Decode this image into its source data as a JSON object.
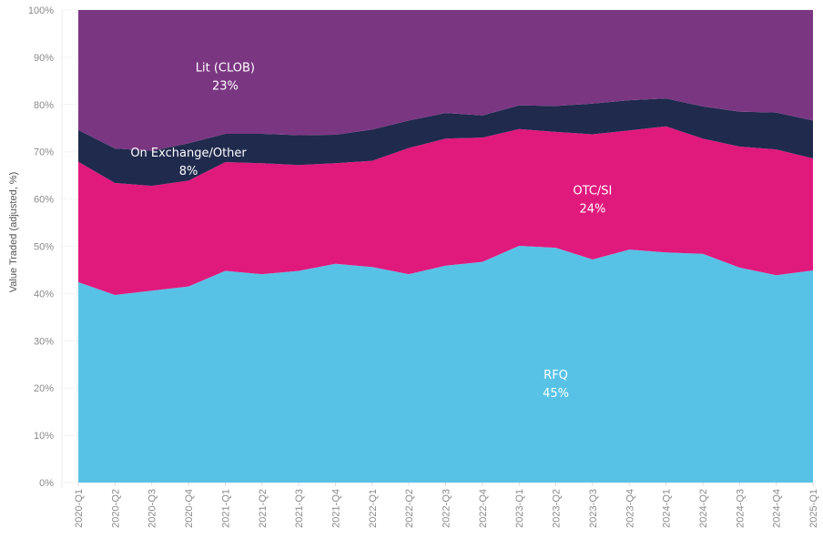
{
  "chart_data": {
    "type": "area",
    "stacked": true,
    "normalized": true,
    "title": "",
    "xlabel": "",
    "ylabel": "Value Traded (adjusted, %)",
    "ylim": [
      0,
      100
    ],
    "grid": true,
    "legend": "none (inline labels)",
    "y_ticks": [
      "0%",
      "10%",
      "20%",
      "30%",
      "40%",
      "50%",
      "60%",
      "70%",
      "80%",
      "90%",
      "100%"
    ],
    "y_tick_values": [
      0,
      10,
      20,
      30,
      40,
      50,
      60,
      70,
      80,
      90,
      100
    ],
    "categories": [
      "2020-Q1",
      "2020-Q2",
      "2020-Q3",
      "2020-Q4",
      "2021-Q1",
      "2021-Q2",
      "2021-Q3",
      "2021-Q4",
      "2022-Q1",
      "2022-Q2",
      "2022-Q3",
      "2022-Q4",
      "2023-Q1",
      "2023-Q2",
      "2023-Q3",
      "2023-Q4",
      "2024-Q1",
      "2024-Q2",
      "2024-Q3",
      "2024-Q4",
      "2025-Q1"
    ],
    "series": [
      {
        "name": "RFQ",
        "color": "#58c2e6",
        "values": [
          42.4,
          39.7,
          40.6,
          41.5,
          44.8,
          44.1,
          44.8,
          46.3,
          45.6,
          44.1,
          45.9,
          46.7,
          50.1,
          49.7,
          47.2,
          49.3,
          48.7,
          48.4,
          45.5,
          43.9,
          44.9
        ]
      },
      {
        "name": "OTC/SI",
        "color": "#e0197d",
        "values": [
          25.5,
          23.7,
          22.2,
          22.4,
          23.0,
          23.5,
          22.4,
          21.3,
          22.5,
          26.7,
          26.9,
          26.3,
          24.7,
          24.5,
          26.5,
          25.2,
          26.7,
          24.4,
          25.6,
          26.6,
          23.7
        ]
      },
      {
        "name": "On Exchange/Other",
        "color": "#1f2a4d",
        "values": [
          6.7,
          7.3,
          7.4,
          7.9,
          6.0,
          6.2,
          6.3,
          6.0,
          6.6,
          5.8,
          5.4,
          4.7,
          5.0,
          5.5,
          6.5,
          6.4,
          5.9,
          6.8,
          7.4,
          7.8,
          8.0
        ]
      },
      {
        "name": "Lit (CLOB)",
        "color": "#7b3682",
        "values": [
          25.4,
          29.3,
          29.8,
          28.2,
          26.2,
          26.2,
          26.5,
          26.4,
          25.3,
          23.4,
          21.8,
          22.3,
          20.2,
          20.3,
          19.8,
          19.1,
          18.7,
          20.4,
          21.5,
          21.7,
          23.4
        ]
      }
    ],
    "annotations": [
      {
        "series": "Lit (CLOB)",
        "label": "Lit (CLOB)",
        "value": "23%",
        "at_category": "2021-Q1",
        "at_y": 87
      },
      {
        "series": "On Exchange/Other",
        "label": "On Exchange/Other",
        "value": "8%",
        "at_category": "2020-Q4",
        "at_y": 69
      },
      {
        "series": "OTC/SI",
        "label": "OTC/SI",
        "value": "24%",
        "at_category": "2023-Q3",
        "at_y": 61
      },
      {
        "series": "RFQ",
        "label": "RFQ",
        "value": "45%",
        "at_category": "2023-Q2",
        "at_y": 22
      }
    ]
  }
}
